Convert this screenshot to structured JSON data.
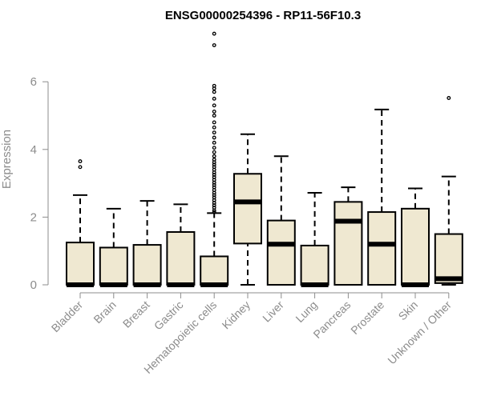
{
  "chart_data": {
    "type": "box",
    "title": "ENSG00000254396 - RP11-56F10.3",
    "xlabel": "",
    "ylabel": "Expression",
    "ylim": [
      0,
      7.5
    ],
    "yticks": [
      0,
      2,
      4,
      6
    ],
    "grid": false,
    "box_fill": "#efe8d1",
    "categories": [
      "Bladder",
      "Brain",
      "Breast",
      "Gastric",
      "Hematopoietic cells",
      "Kidney",
      "Liver",
      "Lung",
      "Pancreas",
      "Prostate",
      "Skin",
      "Unknown / Other"
    ],
    "series": [
      {
        "boxes": [
          {
            "category": "Bladder",
            "low": 0,
            "q1": 0,
            "median": 0,
            "q3": 1.25,
            "high": 2.65,
            "outliers": [
              3.48,
              3.65
            ]
          },
          {
            "category": "Brain",
            "low": 0,
            "q1": 0,
            "median": 0,
            "q3": 1.1,
            "high": 2.25,
            "outliers": []
          },
          {
            "category": "Breast",
            "low": 0,
            "q1": 0,
            "median": 0,
            "q3": 1.18,
            "high": 2.48,
            "outliers": []
          },
          {
            "category": "Gastric",
            "low": 0,
            "q1": 0,
            "median": 0,
            "q3": 1.56,
            "high": 2.38,
            "outliers": []
          },
          {
            "category": "Hematopoietic cells",
            "low": 0,
            "q1": 0,
            "median": 0,
            "q3": 0.84,
            "high": 2.12,
            "outliers": [
              2.15,
              2.2,
              2.28,
              2.35,
              2.42,
              2.5,
              2.58,
              2.65,
              2.72,
              2.8,
              2.88,
              2.95,
              3.02,
              3.1,
              3.18,
              3.25,
              3.32,
              3.4,
              3.48,
              3.55,
              3.62,
              3.7,
              3.8,
              3.92,
              4.05,
              4.2,
              4.35,
              4.5,
              4.65,
              4.8,
              5.0,
              5.12,
              5.3,
              5.5,
              5.7,
              5.8,
              5.88,
              7.08,
              7.42
            ]
          },
          {
            "category": "Kidney",
            "low": 0,
            "q1": 1.22,
            "median": 2.45,
            "q3": 3.28,
            "high": 4.45,
            "outliers": []
          },
          {
            "category": "Liver",
            "low": 0,
            "q1": 0,
            "median": 1.2,
            "q3": 1.9,
            "high": 3.8,
            "outliers": []
          },
          {
            "category": "Lung",
            "low": 0,
            "q1": 0,
            "median": 0,
            "q3": 1.16,
            "high": 2.72,
            "outliers": []
          },
          {
            "category": "Pancreas",
            "low": 0,
            "q1": 0,
            "median": 1.88,
            "q3": 2.45,
            "high": 2.88,
            "outliers": []
          },
          {
            "category": "Prostate",
            "low": 0,
            "q1": 0,
            "median": 1.2,
            "q3": 2.15,
            "high": 5.18,
            "outliers": []
          },
          {
            "category": "Skin",
            "low": 0,
            "q1": 0,
            "median": 0,
            "q3": 2.25,
            "high": 2.85,
            "outliers": []
          },
          {
            "category": "Unknown / Other",
            "low": 0,
            "q1": 0.05,
            "median": 0.18,
            "q3": 1.5,
            "high": 3.2,
            "outliers": [
              5.52
            ]
          }
        ]
      }
    ]
  }
}
